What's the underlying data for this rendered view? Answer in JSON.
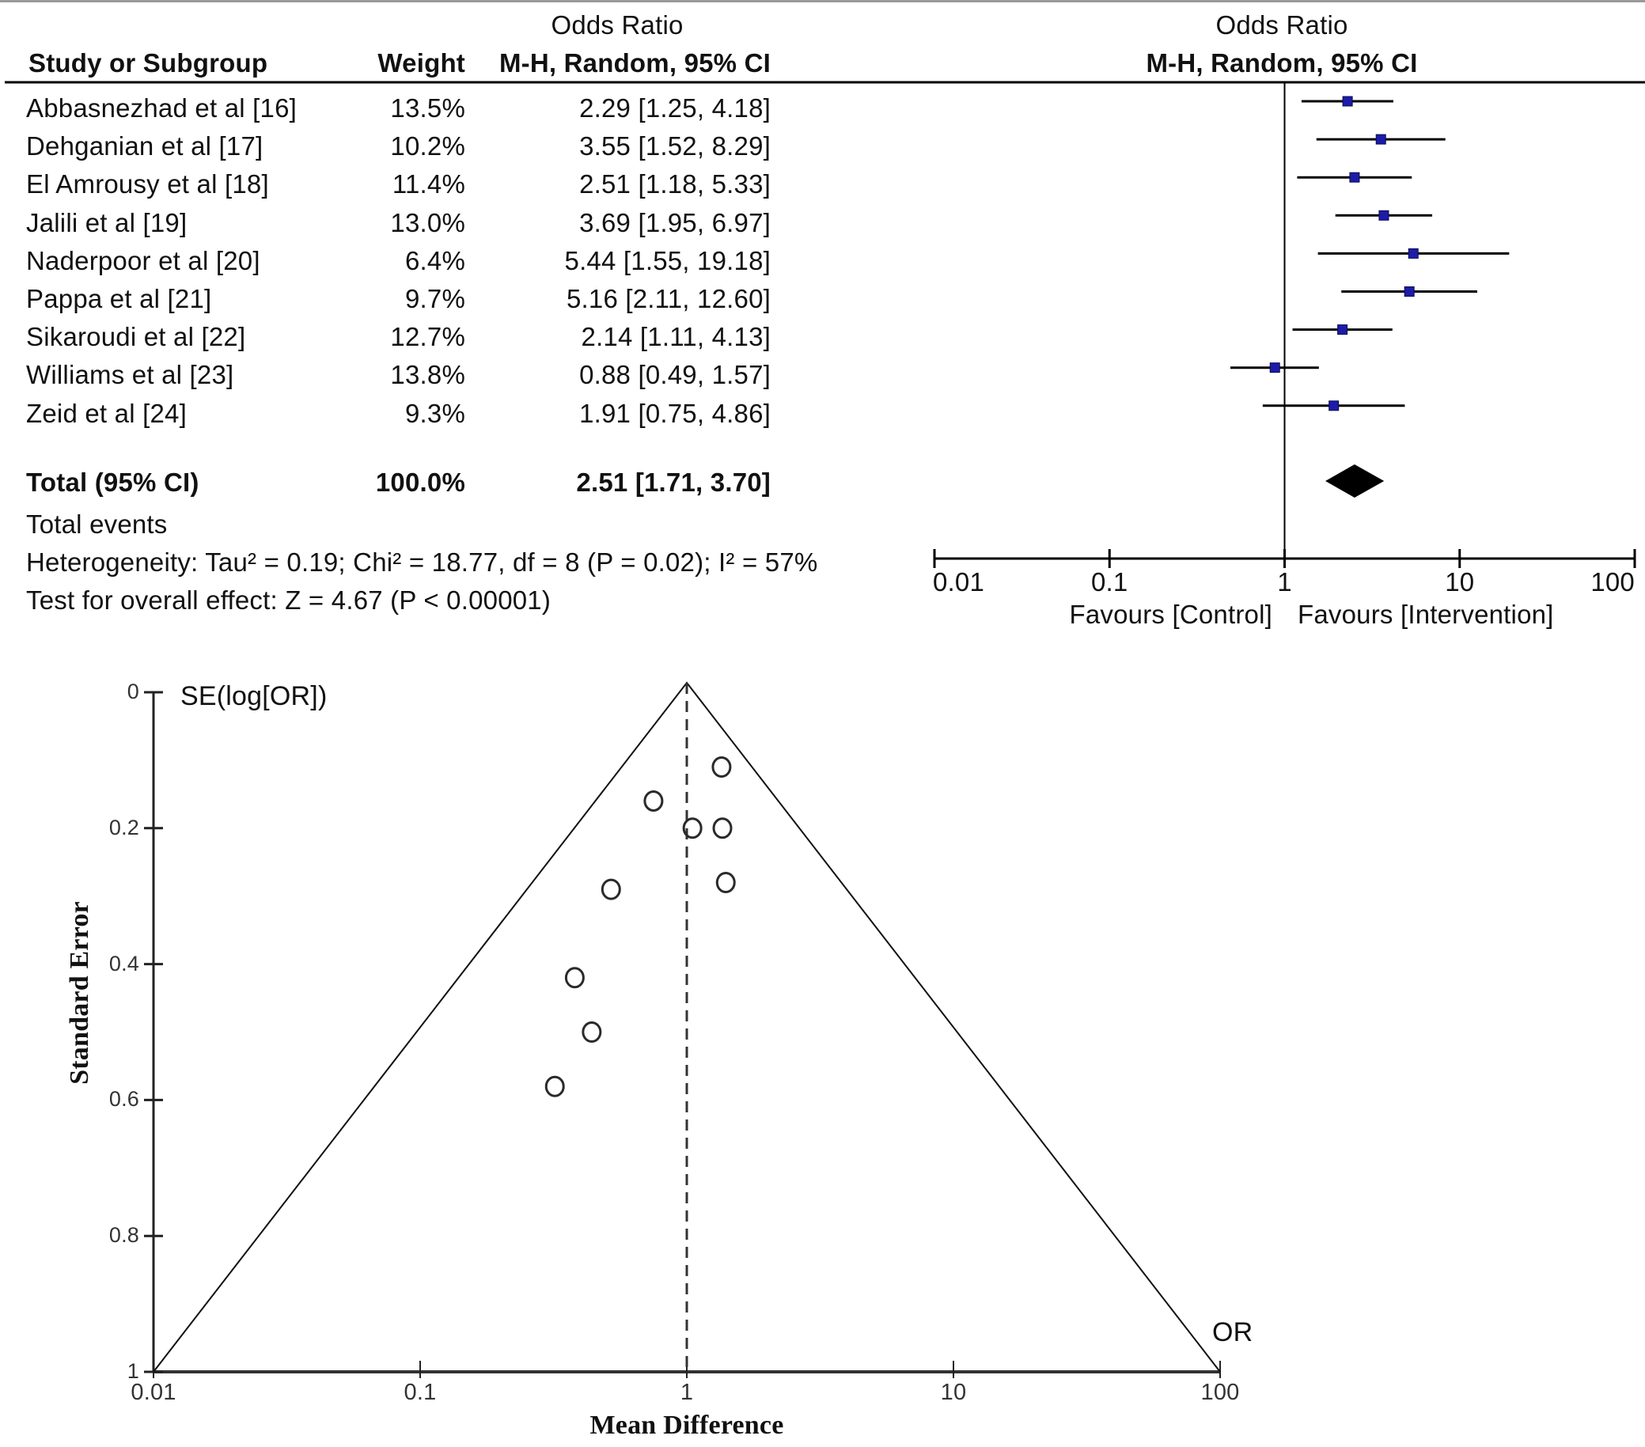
{
  "chart_data": [
    {
      "type": "forest",
      "title": "Odds Ratio",
      "columns": {
        "study": "Study or Subgroup",
        "weight": "Weight",
        "effect_title": "Odds Ratio",
        "effect_method": "M-H, Random, 95% CI"
      },
      "plot_header": {
        "title": "Odds Ratio",
        "method": "M-H, Random, 95% CI"
      },
      "studies": [
        {
          "name": "Abbasnezhad et al [16]",
          "weight": "13.5%",
          "or": 2.29,
          "lo": 1.25,
          "hi": 4.18,
          "ci_text": "2.29 [1.25, 4.18]"
        },
        {
          "name": "Dehganian et al [17]",
          "weight": "10.2%",
          "or": 3.55,
          "lo": 1.52,
          "hi": 8.29,
          "ci_text": "3.55 [1.52, 8.29]"
        },
        {
          "name": "El Amrousy et al [18]",
          "weight": "11.4%",
          "or": 2.51,
          "lo": 1.18,
          "hi": 5.33,
          "ci_text": "2.51 [1.18, 5.33]"
        },
        {
          "name": "Jalili et al [19]",
          "weight": "13.0%",
          "or": 3.69,
          "lo": 1.95,
          "hi": 6.97,
          "ci_text": "3.69 [1.95, 6.97]"
        },
        {
          "name": "Naderpoor et al [20]",
          "weight": "6.4%",
          "or": 5.44,
          "lo": 1.55,
          "hi": 19.18,
          "ci_text": "5.44 [1.55, 19.18]"
        },
        {
          "name": "Pappa et al [21]",
          "weight": "9.7%",
          "or": 5.16,
          "lo": 2.11,
          "hi": 12.6,
          "ci_text": "5.16 [2.11, 12.60]"
        },
        {
          "name": "Sikaroudi et al [22]",
          "weight": "12.7%",
          "or": 2.14,
          "lo": 1.11,
          "hi": 4.13,
          "ci_text": "2.14 [1.11, 4.13]"
        },
        {
          "name": "Williams et al [23]",
          "weight": "13.8%",
          "or": 0.88,
          "lo": 0.49,
          "hi": 1.57,
          "ci_text": "0.88 [0.49, 1.57]"
        },
        {
          "name": "Zeid et al [24]",
          "weight": "9.3%",
          "or": 1.91,
          "lo": 0.75,
          "hi": 4.86,
          "ci_text": "1.91 [0.75, 4.86]"
        }
      ],
      "total": {
        "label": "Total (95% CI)",
        "weight": "100.0%",
        "or": 2.51,
        "lo": 1.71,
        "hi": 3.7,
        "ci_text": "2.51 [1.71, 3.70]"
      },
      "total_events_label": "Total events",
      "heterogeneity": "Heterogeneity: Tau² = 0.19; Chi² = 18.77, df = 8 (P = 0.02); I² = 57%",
      "overall_effect": "Test for overall effect: Z = 4.67 (P < 0.00001)",
      "xscale": "log",
      "xlim": [
        0.01,
        100
      ],
      "xticks": [
        0.01,
        0.1,
        1,
        10,
        100
      ],
      "xtick_labels": [
        "0.01",
        "0.1",
        "1",
        "10",
        "100"
      ],
      "favours_left": "Favours [Control]",
      "favours_right": "Favours [Intervention]",
      "marker_color": "#1c1ca8"
    },
    {
      "type": "scatter",
      "subtype": "funnel",
      "ylabel": "Standard Error",
      "xlabel": "Mean Difference",
      "y_title": "SE(log[OR])",
      "x_title": "OR",
      "xscale": "log",
      "xlim": [
        0.01,
        100
      ],
      "xticks": [
        0.01,
        0.1,
        1,
        10,
        100
      ],
      "xtick_labels": [
        "0.01",
        "0.1",
        "1",
        "10",
        "100"
      ],
      "ylim": [
        0,
        1
      ],
      "y_inverted": true,
      "yticks": [
        0,
        0.2,
        0.4,
        0.6,
        0.8,
        1
      ],
      "ytick_labels": [
        "0",
        "0.2",
        "0.4",
        "0.6",
        "0.8",
        "1"
      ],
      "reference_line": 1,
      "funnel_apex_or": 1,
      "funnel_base_se": 1,
      "points": [
        {
          "or": 1.35,
          "se": 0.11
        },
        {
          "or": 0.75,
          "se": 0.16
        },
        {
          "or": 1.05,
          "se": 0.2
        },
        {
          "or": 1.36,
          "se": 0.2
        },
        {
          "or": 1.4,
          "se": 0.28
        },
        {
          "or": 0.52,
          "se": 0.29
        },
        {
          "or": 0.38,
          "se": 0.42
        },
        {
          "or": 0.44,
          "se": 0.5
        },
        {
          "or": 0.32,
          "se": 0.58
        }
      ]
    }
  ]
}
